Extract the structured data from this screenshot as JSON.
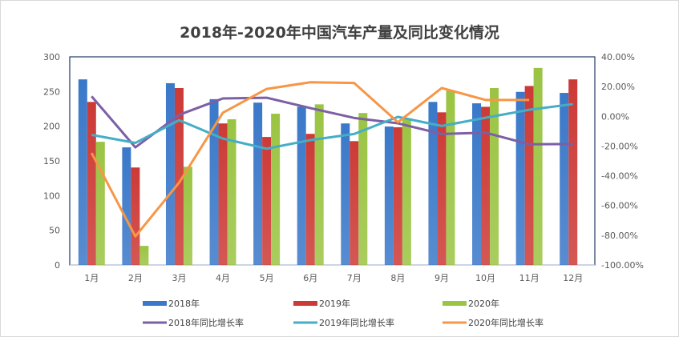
{
  "chart_data": {
    "type": "bar+line",
    "title": "2018年-2020年中国汽车产量及同比变化情况",
    "categories": [
      "1月",
      "2月",
      "3月",
      "4月",
      "5月",
      "6月",
      "7月",
      "8月",
      "9月",
      "10月",
      "11月",
      "12月"
    ],
    "y_left": {
      "range": [
        0,
        300
      ],
      "ticks": [
        "0",
        "50",
        "100",
        "150",
        "200",
        "250",
        "300"
      ]
    },
    "y_right": {
      "range": [
        -100,
        40
      ],
      "ticks": [
        "-100.00%",
        "-80.00%",
        "-60.00%",
        "-40.00%",
        "-20.00%",
        "0.00%",
        "20.00%",
        "40.00%"
      ]
    },
    "grid": false,
    "legend": "bottom",
    "bar_series": [
      {
        "name": "2018年",
        "color": "#3a78c9",
        "values": [
          267.5,
          169.5,
          262,
          239,
          234,
          228,
          204,
          199.5,
          235,
          233,
          249.5,
          248
        ]
      },
      {
        "name": "2019年",
        "color": "#cc3a36",
        "values": [
          235,
          140.5,
          255,
          204,
          184.5,
          189,
          178.5,
          198.5,
          220,
          228,
          258,
          267.5
        ]
      },
      {
        "name": "2020年",
        "color": "#9bc443",
        "values": [
          177.5,
          27.5,
          141.5,
          210,
          218,
          231.5,
          219,
          211,
          251,
          255,
          284,
          null
        ]
      }
    ],
    "line_series": [
      {
        "name": "2018年同比增长率",
        "color": "#7d5fa5",
        "values": [
          13.4,
          -20.9,
          1.0,
          12.0,
          12.5,
          5.5,
          -1.1,
          -4.7,
          -11.9,
          -11,
          -18.8,
          -18.6
        ]
      },
      {
        "name": "2019年同比增长率",
        "color": "#45aec6",
        "values": [
          -12.5,
          -17.9,
          -2.6,
          -15,
          -21.8,
          -16,
          -11.9,
          -0.4,
          -6.5,
          -1,
          4.4,
          8.2
        ]
      },
      {
        "name": "2020年同比增长率",
        "color": "#f79646",
        "values": [
          -24.7,
          -80.8,
          -44.6,
          2.4,
          18.4,
          22.9,
          22.4,
          -4,
          19,
          11,
          11,
          null
        ]
      }
    ]
  }
}
